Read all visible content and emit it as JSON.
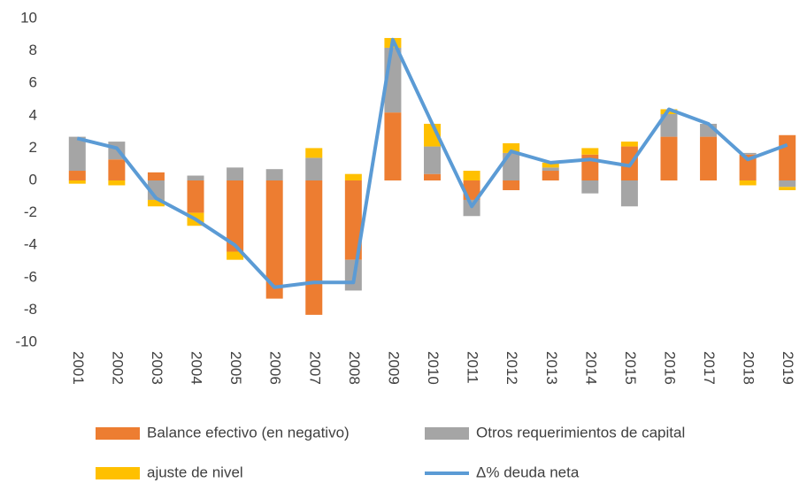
{
  "chart_data": {
    "type": "stacked_bar_line",
    "categories": [
      "2001",
      "2002",
      "2003",
      "2004",
      "2005",
      "2006",
      "2007",
      "2008",
      "2009",
      "2010",
      "2011",
      "2012",
      "2013",
      "2014",
      "2015",
      "2016",
      "2017",
      "2018",
      "2019"
    ],
    "series": [
      {
        "name": "Balance efectivo (en negativo)",
        "color": "#ed7d31",
        "kind": "bar",
        "values": [
          0.6,
          1.3,
          0.5,
          -2.0,
          -4.4,
          -7.3,
          -8.3,
          -4.9,
          4.2,
          0.4,
          -1.2,
          -0.6,
          0.6,
          1.6,
          2.1,
          2.7,
          2.7,
          1.6,
          2.8
        ]
      },
      {
        "name": "Otros requerimientos de capital",
        "color": "#a5a5a5",
        "kind": "bar",
        "values": [
          2.1,
          1.1,
          -1.2,
          0.3,
          0.8,
          0.7,
          1.4,
          -1.9,
          4.0,
          1.7,
          -1.0,
          1.7,
          0.2,
          -0.8,
          -1.6,
          1.4,
          0.8,
          0.1,
          -0.4
        ]
      },
      {
        "name": "ajuste de nivel",
        "color": "#ffc000",
        "kind": "bar",
        "values": [
          -0.2,
          -0.3,
          -0.4,
          -0.8,
          -0.5,
          0,
          0.6,
          0.4,
          0.6,
          1.4,
          0.6,
          0.6,
          0.3,
          0.4,
          0.3,
          0.3,
          0,
          -0.3,
          -0.2
        ]
      },
      {
        "name": "Δ% deuda neta",
        "color": "#5b9bd5",
        "kind": "line",
        "values": [
          2.6,
          2.0,
          -1.1,
          -2.4,
          -4.0,
          -6.6,
          -6.3,
          -6.3,
          8.7,
          3.5,
          -1.6,
          1.8,
          1.1,
          1.3,
          0.9,
          4.4,
          3.5,
          1.3,
          2.2
        ]
      }
    ],
    "ylim": [
      -10,
      10
    ],
    "yticks": [
      -10,
      -8,
      -6,
      -4,
      -2,
      0,
      2,
      4,
      6,
      8,
      10
    ]
  }
}
